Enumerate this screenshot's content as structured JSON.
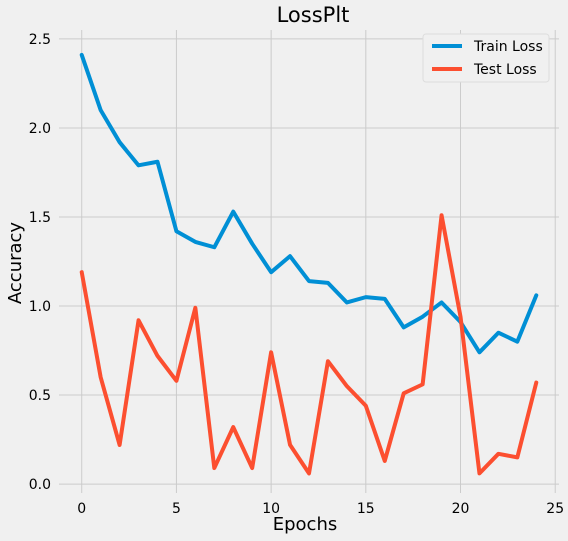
{
  "chart_data": {
    "type": "line",
    "title": "LossPlt",
    "xlabel": "Epochs",
    "ylabel": "Accuracy",
    "xlim": [
      -1.2,
      25.2
    ],
    "ylim": [
      -0.05,
      2.55
    ],
    "xticks": [
      0,
      5,
      10,
      15,
      20,
      25
    ],
    "yticks": [
      0.0,
      0.5,
      1.0,
      1.5,
      2.0,
      2.5
    ],
    "xtick_labels": [
      "0",
      "5",
      "10",
      "15",
      "20",
      "25"
    ],
    "ytick_labels": [
      "0.0",
      "0.5",
      "1.0",
      "1.5",
      "2.0",
      "2.5"
    ],
    "grid": true,
    "legend_position": "top-right",
    "x": [
      0,
      1,
      2,
      3,
      4,
      5,
      6,
      7,
      8,
      9,
      10,
      11,
      12,
      13,
      14,
      15,
      16,
      17,
      18,
      19,
      20,
      21,
      22,
      23,
      24
    ],
    "series": [
      {
        "name": "Train Loss",
        "color": "#008fd5",
        "values": [
          2.41,
          2.1,
          1.92,
          1.79,
          1.81,
          1.42,
          1.36,
          1.33,
          1.53,
          1.35,
          1.19,
          1.28,
          1.14,
          1.13,
          1.02,
          1.05,
          1.04,
          0.88,
          0.94,
          1.02,
          0.91,
          0.74,
          0.85,
          0.8,
          1.06
        ]
      },
      {
        "name": "Test Loss",
        "color": "#fc4f30",
        "values": [
          1.19,
          0.6,
          0.22,
          0.92,
          0.72,
          0.58,
          0.99,
          0.09,
          0.32,
          0.09,
          0.74,
          0.22,
          0.06,
          0.69,
          0.55,
          0.44,
          0.13,
          0.51,
          0.56,
          1.51,
          0.94,
          0.06,
          0.17,
          0.15,
          0.57
        ]
      }
    ]
  }
}
